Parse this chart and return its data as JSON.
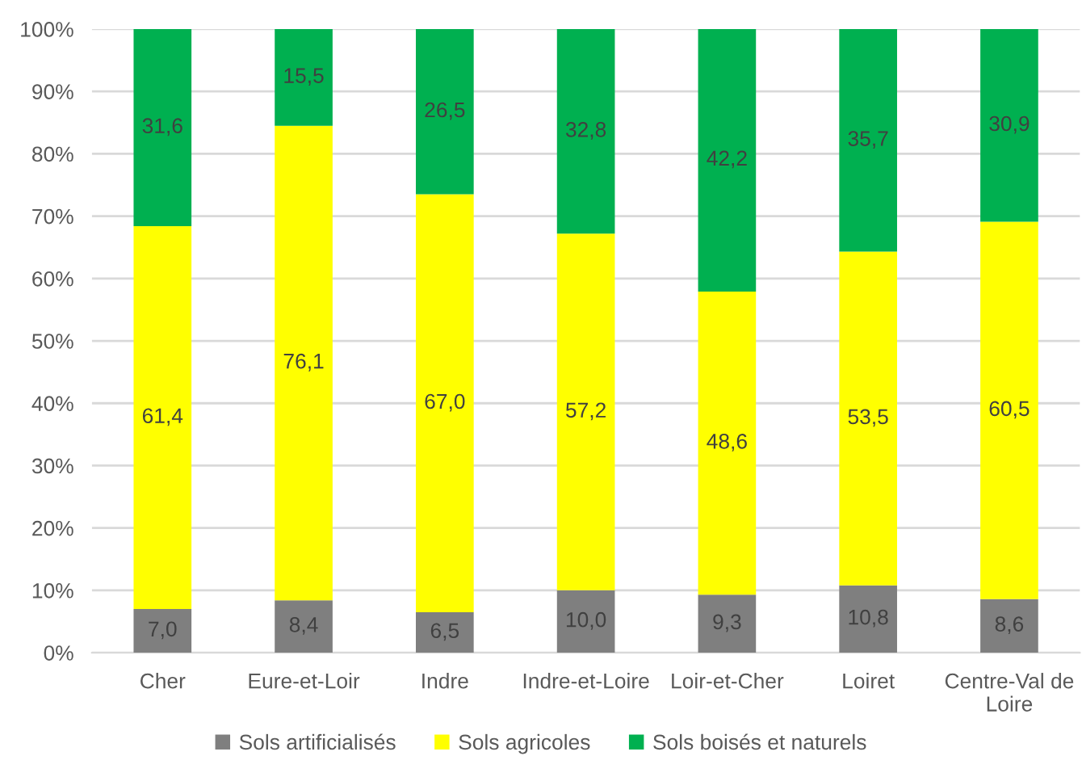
{
  "chart_data": {
    "type": "bar",
    "stacked": true,
    "categories": [
      "Cher",
      "Eure-et-Loir",
      "Indre",
      "Indre-et-Loire",
      "Loir-et-Cher",
      "Loiret",
      "Centre-Val de\nLoire"
    ],
    "series": [
      {
        "name": "Sols artificialisés",
        "color": "#7f7f7f",
        "values": [
          7.0,
          8.4,
          6.5,
          10.0,
          9.3,
          10.8,
          8.6
        ],
        "value_labels": [
          "7,0",
          "8,4",
          "6,5",
          "10,0",
          "9,3",
          "10,8",
          "8,6"
        ]
      },
      {
        "name": "Sols agricoles",
        "color": "#ffff00",
        "values": [
          61.4,
          76.1,
          67.0,
          57.2,
          48.6,
          53.5,
          60.5
        ],
        "value_labels": [
          "61,4",
          "76,1",
          "67,0",
          "57,2",
          "48,6",
          "53,5",
          "60,5"
        ]
      },
      {
        "name": "Sols boisés et naturels",
        "color": "#00b050",
        "values": [
          31.6,
          15.5,
          26.5,
          32.8,
          42.2,
          35.7,
          30.9
        ],
        "value_labels": [
          "31,6",
          "15,5",
          "26,5",
          "32,8",
          "42,2",
          "35,7",
          "30,9"
        ]
      }
    ],
    "ylim": [
      0,
      100
    ],
    "yticks": [
      {
        "value": 0,
        "label": "0%"
      },
      {
        "value": 10,
        "label": "10%"
      },
      {
        "value": 20,
        "label": "20%"
      },
      {
        "value": 30,
        "label": "30%"
      },
      {
        "value": 40,
        "label": "40%"
      },
      {
        "value": 50,
        "label": "50%"
      },
      {
        "value": 60,
        "label": "60%"
      },
      {
        "value": 70,
        "label": "70%"
      },
      {
        "value": 80,
        "label": "80%"
      },
      {
        "value": 90,
        "label": "90%"
      },
      {
        "value": 100,
        "label": "100%"
      }
    ],
    "grid": "y",
    "legend": "bottom"
  }
}
